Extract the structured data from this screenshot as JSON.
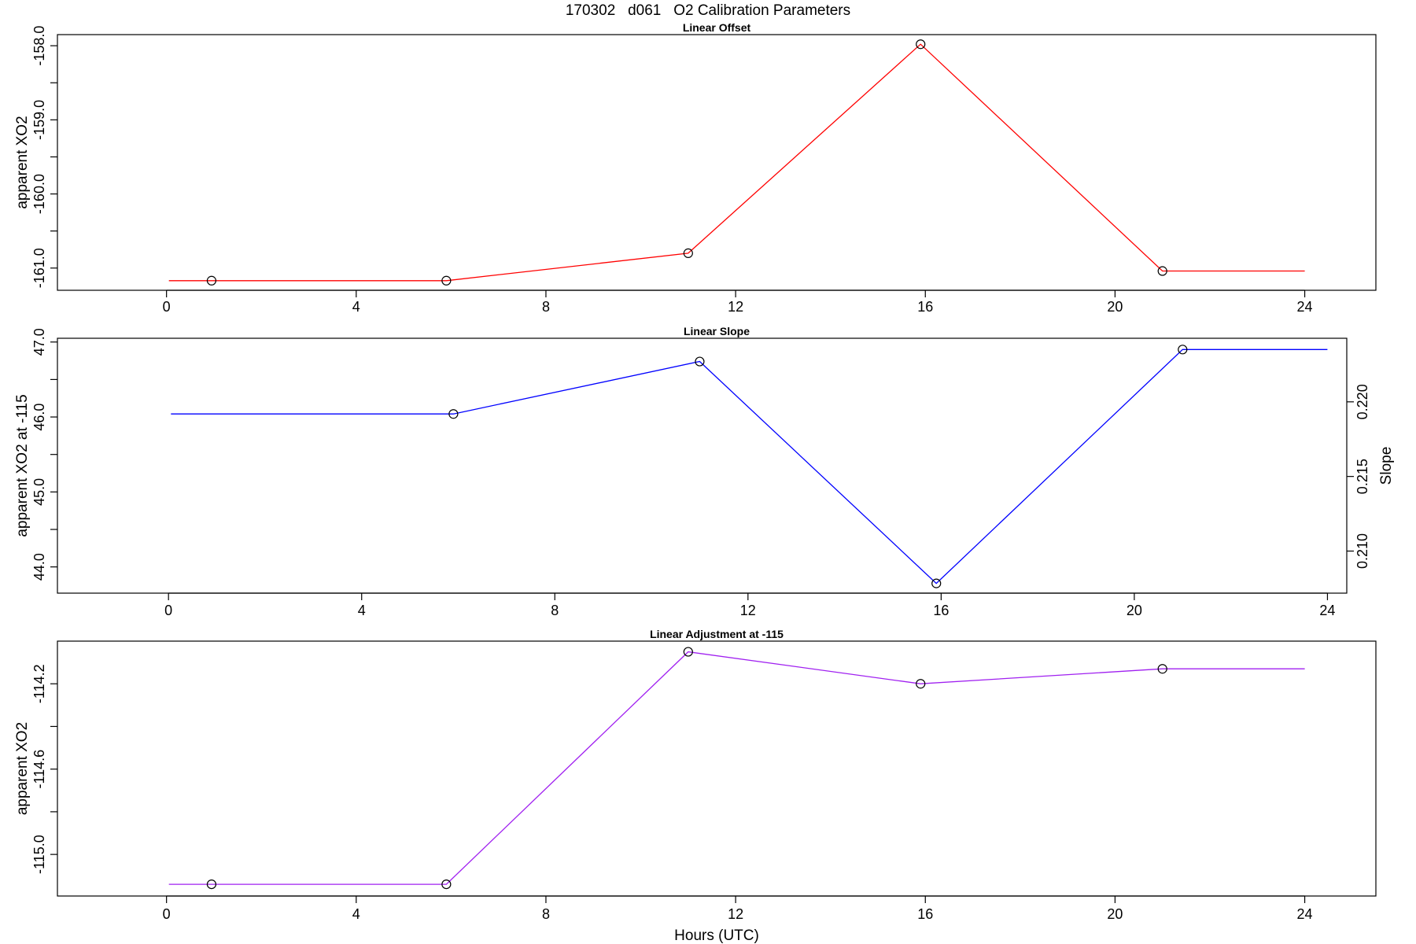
{
  "chart_data": [
    {
      "type": "line",
      "title": "Linear Offset",
      "xlabel": "",
      "ylabel": "apparent XO2",
      "color": "#ff0000",
      "xlim": [
        -2.3,
        25.5
      ],
      "ylim": [
        -161.3,
        -157.85
      ],
      "xticks": [
        0,
        4,
        8,
        12,
        16,
        20,
        24
      ],
      "xtick_labels": [
        "0",
        "4",
        "8",
        "12",
        "16",
        "20",
        "24"
      ],
      "yticks": [
        -161,
        -160.5,
        -160,
        -159.5,
        -159,
        -158.5,
        -158
      ],
      "ytick_labels": [
        "-161.0",
        "",
        "-160.0",
        "",
        "-159.0",
        "",
        "-158.0"
      ],
      "line": {
        "x": [
          0.05,
          0.95,
          5.9,
          11,
          15.9,
          21,
          24
        ],
        "y": [
          -161.17,
          -161.17,
          -161.17,
          -160.8,
          -157.98,
          -161.04,
          -161.04
        ]
      },
      "markers": {
        "x": [
          0.95,
          5.9,
          11,
          15.9,
          21
        ],
        "y": [
          -161.17,
          -161.17,
          -160.8,
          -157.98,
          -161.04
        ]
      },
      "grid": false
    },
    {
      "type": "line",
      "title": "Linear Slope",
      "xlabel": "",
      "ylabel": "apparent XO2 at -115",
      "y2label": "Slope",
      "color": "#0000ff",
      "xlim": [
        -2.3,
        24.4
      ],
      "ylim": [
        43.65,
        47.05
      ],
      "xticks": [
        0,
        4,
        8,
        12,
        16,
        20,
        24
      ],
      "xtick_labels": [
        "0",
        "4",
        "8",
        "12",
        "16",
        "20",
        "24"
      ],
      "yticks": [
        44,
        44.5,
        45,
        45.5,
        46,
        46.5,
        47
      ],
      "ytick_labels": [
        "44.0",
        "",
        "45.0",
        "",
        "46.0",
        "",
        "47.0"
      ],
      "y2ticks": [
        0.21,
        0.215,
        0.22
      ],
      "y2tick_labels": [
        "0.210",
        "0.215",
        "0.220"
      ],
      "y2lim": [
        0.20718,
        0.22426
      ],
      "line": {
        "x": [
          0.05,
          5.9,
          11,
          15.9,
          21,
          24
        ],
        "y": [
          46.04,
          46.04,
          46.74,
          43.78,
          46.9,
          46.9
        ]
      },
      "markers": {
        "x": [
          5.9,
          11,
          15.9,
          21
        ],
        "y": [
          46.04,
          46.74,
          43.78,
          46.9
        ]
      },
      "grid": false
    },
    {
      "type": "line",
      "title": "Linear Adjustment at -115",
      "xlabel": "Hours (UTC)",
      "ylabel": "apparent XO2",
      "color": "#a020f0",
      "xlim": [
        -2.3,
        25.5
      ],
      "ylim": [
        -115.195,
        -114.0
      ],
      "xticks": [
        0,
        4,
        8,
        12,
        16,
        20,
        24
      ],
      "xtick_labels": [
        "0",
        "4",
        "8",
        "12",
        "16",
        "20",
        "24"
      ],
      "yticks": [
        -115,
        -114.8,
        -114.6,
        -114.4,
        -114.2
      ],
      "ytick_labels": [
        "-115.0",
        "",
        "-114.6",
        "",
        "-114.2"
      ],
      "line": {
        "x": [
          0.05,
          0.95,
          5.9,
          11,
          15.9,
          21,
          24
        ],
        "y": [
          -115.14,
          -115.14,
          -115.14,
          -114.05,
          -114.2,
          -114.13,
          -114.13
        ]
      },
      "markers": {
        "x": [
          0.95,
          5.9,
          11,
          15.9,
          21
        ],
        "y": [
          -115.14,
          -115.14,
          -114.05,
          -114.2,
          -114.13
        ]
      },
      "grid": false
    }
  ],
  "figure": {
    "title": "170302   d061   O2 Calibration Parameters"
  }
}
